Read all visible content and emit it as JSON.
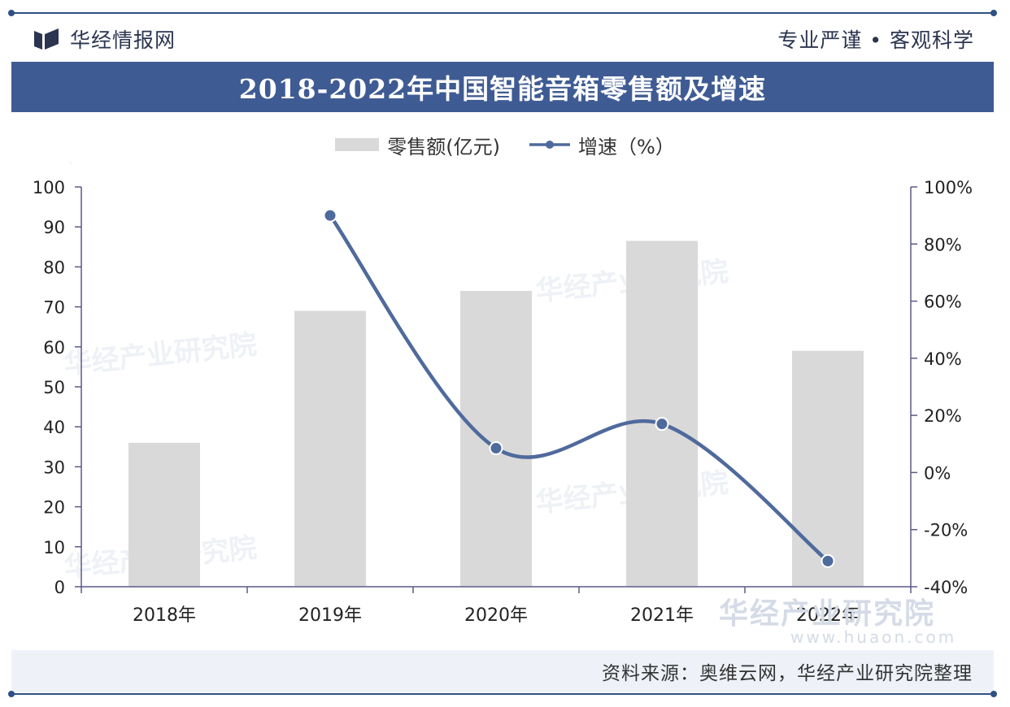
{
  "header": {
    "brand_name": "华经情报网",
    "slogan": "专业严谨 • 客观科学"
  },
  "title": "2018-2022年中国智能音箱零售额及增速",
  "legend": {
    "bar_label": "零售额(亿元)",
    "line_label": "增速（%）"
  },
  "watermark": {
    "name": "华经产业研究院",
    "url": "www.huaon.com"
  },
  "footer": {
    "source": "资料来源：奥维云网，华经产业研究院整理"
  },
  "colors": {
    "bar": "#d9d9d9",
    "line": "#4f6a9c",
    "title_bar": "#3f5b93",
    "axis": "#5a5a8a"
  },
  "chart_data": {
    "type": "bar",
    "categories": [
      "2018年",
      "2019年",
      "2020年",
      "2021年",
      "2022年"
    ],
    "series": [
      {
        "name": "零售额(亿元)",
        "type": "bar",
        "axis": "left",
        "values": [
          36,
          69,
          74,
          86.5,
          59
        ]
      },
      {
        "name": "增速（%）",
        "type": "line",
        "axis": "right",
        "values": [
          null,
          90,
          8.5,
          17,
          -31
        ]
      }
    ],
    "y_left": {
      "min": 0,
      "max": 100,
      "ticks": [
        "0",
        "10",
        "20",
        "30",
        "40",
        "50",
        "60",
        "70",
        "80",
        "90",
        "100"
      ]
    },
    "y_right": {
      "min": -40,
      "max": 100,
      "ticks": [
        "-40%",
        "-20%",
        "0%",
        "20%",
        "40%",
        "60%",
        "80%",
        "100%"
      ]
    },
    "grid": false,
    "legend_position": "top"
  }
}
